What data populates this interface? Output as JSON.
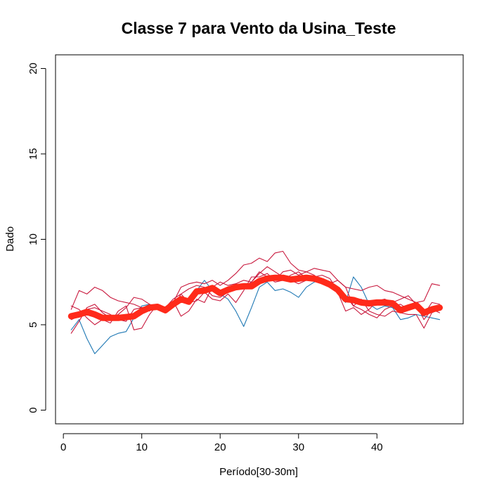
{
  "chart_data": {
    "type": "line",
    "title": "Classe  7 para Vento da Usina_Teste",
    "xlabel": "Período[30-30m]",
    "ylabel": "Dado",
    "xlim": [
      -1,
      51
    ],
    "ylim": [
      -0.8,
      20.8
    ],
    "xticks": [
      0,
      10,
      20,
      30,
      40
    ],
    "yticks": [
      0,
      5,
      10,
      15,
      20
    ],
    "grid": false,
    "colors": {
      "mean": "#ff2a1a",
      "member": "#c8173c",
      "member_blue": "#1f78b4"
    },
    "x": [
      1,
      2,
      3,
      4,
      5,
      6,
      7,
      8,
      9,
      10,
      11,
      12,
      13,
      14,
      15,
      16,
      17,
      18,
      19,
      20,
      21,
      22,
      23,
      24,
      25,
      26,
      27,
      28,
      29,
      30,
      31,
      32,
      33,
      34,
      35,
      36,
      37,
      38,
      39,
      40,
      41,
      42,
      43,
      44,
      45,
      46,
      47,
      48
    ],
    "series": [
      {
        "role": "member",
        "color": "#1f78b4",
        "values": [
          4.7,
          5.3,
          4.2,
          3.3,
          3.8,
          4.3,
          4.5,
          4.6,
          5.4,
          6.1,
          6.2,
          6.0,
          5.9,
          6.2,
          6.6,
          6.5,
          7.0,
          7.6,
          7.0,
          6.8,
          6.5,
          5.8,
          4.9,
          6.0,
          7.2,
          7.5,
          7.0,
          7.1,
          6.9,
          6.6,
          7.2,
          7.5,
          7.6,
          7.3,
          7.0,
          6.3,
          7.8,
          7.2,
          6.2,
          5.9,
          6.1,
          6.0,
          5.3,
          5.4,
          5.6,
          5.5,
          5.4,
          5.3
        ]
      },
      {
        "role": "member",
        "color": "#c8173c",
        "values": [
          5.9,
          7.0,
          6.8,
          7.2,
          7.0,
          6.6,
          6.4,
          6.3,
          6.2,
          6.0,
          6.1,
          5.9,
          5.8,
          6.3,
          7.2,
          7.4,
          7.5,
          7.4,
          7.6,
          7.3,
          7.6,
          8.0,
          8.5,
          8.6,
          8.9,
          8.7,
          9.2,
          9.3,
          8.6,
          8.2,
          8.1,
          8.3,
          8.2,
          8.1,
          7.6,
          7.2,
          7.1,
          7.0,
          7.2,
          7.3,
          7.0,
          6.9,
          6.7,
          6.5,
          6.3,
          6.4,
          7.4,
          7.3
        ]
      },
      {
        "role": "member",
        "color": "#c8173c",
        "values": [
          4.5,
          5.2,
          6.0,
          6.2,
          5.7,
          5.4,
          5.6,
          6.0,
          6.6,
          6.5,
          6.2,
          6.0,
          5.7,
          6.4,
          5.5,
          5.8,
          6.5,
          6.3,
          7.2,
          7.5,
          7.3,
          7.4,
          7.2,
          7.5,
          8.1,
          7.8,
          7.5,
          7.6,
          7.9,
          8.1,
          7.7,
          7.6,
          7.7,
          7.4,
          7.6,
          7.2,
          6.1,
          6.5,
          5.8,
          5.6,
          5.5,
          5.8,
          5.7,
          5.6,
          5.6,
          4.8,
          5.7,
          5.9
        ]
      },
      {
        "role": "member",
        "color": "#c8173c",
        "values": [
          6.1,
          5.9,
          5.4,
          5.0,
          5.3,
          5.1,
          5.8,
          6.1,
          4.7,
          4.8,
          5.6,
          6.2,
          6.0,
          6.5,
          6.8,
          6.3,
          6.4,
          6.9,
          6.5,
          6.4,
          6.8,
          6.3,
          7.0,
          7.8,
          7.8,
          8.0,
          7.6,
          8.1,
          8.2,
          7.9,
          8.1,
          7.9,
          7.5,
          7.2,
          6.9,
          5.8,
          6.0,
          5.6,
          5.9,
          6.4,
          6.5,
          6.3,
          6.5,
          6.7,
          6.2,
          5.3,
          5.9,
          5.7
        ]
      },
      {
        "role": "member",
        "color": "#c8173c",
        "values": [
          5.3,
          5.5,
          5.9,
          6.0,
          5.8,
          5.6,
          5.3,
          5.2,
          5.9,
          6.0,
          5.8,
          6.1,
          5.9,
          6.0,
          6.8,
          7.1,
          7.3,
          7.2,
          6.7,
          6.6,
          6.9,
          7.4,
          7.6,
          7.5,
          8.0,
          8.4,
          8.1,
          7.8,
          7.6,
          7.4,
          7.6,
          7.8,
          7.9,
          7.7,
          7.0,
          6.7,
          6.1,
          5.9,
          5.6,
          5.4,
          5.9,
          6.1,
          6.2,
          5.9,
          6.0,
          5.6,
          6.3,
          6.2
        ]
      },
      {
        "role": "mean",
        "color": "#ff2a1a",
        "values": [
          5.5,
          5.6,
          5.75,
          5.6,
          5.4,
          5.4,
          5.4,
          5.45,
          5.5,
          5.8,
          6.0,
          6.05,
          5.85,
          6.2,
          6.5,
          6.35,
          6.95,
          7.0,
          7.15,
          6.85,
          7.05,
          7.2,
          7.25,
          7.25,
          7.55,
          7.7,
          7.75,
          7.75,
          7.65,
          7.7,
          7.75,
          7.7,
          7.55,
          7.35,
          7.05,
          6.5,
          6.45,
          6.3,
          6.25,
          6.3,
          6.3,
          6.25,
          5.85,
          6.0,
          6.15,
          5.7,
          5.9,
          6.0
        ]
      }
    ]
  }
}
